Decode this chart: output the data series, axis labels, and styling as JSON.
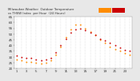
{
  "title": "Milwaukee Weather  Outdoor Temperature",
  "title2": " vs THSW Index  per Hour  (24 Hours)",
  "background_color": "#e8e8e8",
  "plot_bg_color": "#ffffff",
  "hours": [
    1,
    2,
    3,
    4,
    5,
    6,
    7,
    8,
    9,
    10,
    11,
    12,
    13,
    14,
    15,
    16,
    17,
    18,
    19,
    20,
    21,
    22,
    23,
    24
  ],
  "temp_values": [
    31,
    30,
    29,
    29,
    28,
    27,
    28,
    29,
    34,
    40,
    46,
    51,
    54,
    55,
    53,
    51,
    49,
    46,
    44,
    42,
    40,
    38,
    36,
    35
  ],
  "thsw_values": [
    28,
    27,
    26,
    26,
    25,
    24,
    25,
    27,
    32,
    39,
    47,
    54,
    58,
    58,
    55,
    52,
    49,
    45,
    42,
    39,
    37,
    35,
    33,
    32
  ],
  "temp_color": "#cc0000",
  "thsw_color": "#ff8c00",
  "ylim_min": 20,
  "ylim_max": 65,
  "yticks": [
    20,
    25,
    30,
    35,
    40,
    45,
    50,
    55,
    60,
    65
  ],
  "grid_color": "#bbbbbb",
  "tick_fontsize": 3.0,
  "title_fontsize": 2.8,
  "dot_size": 1.8,
  "legend_orange_color": "#ff8c00",
  "legend_red_color": "#cc0000"
}
